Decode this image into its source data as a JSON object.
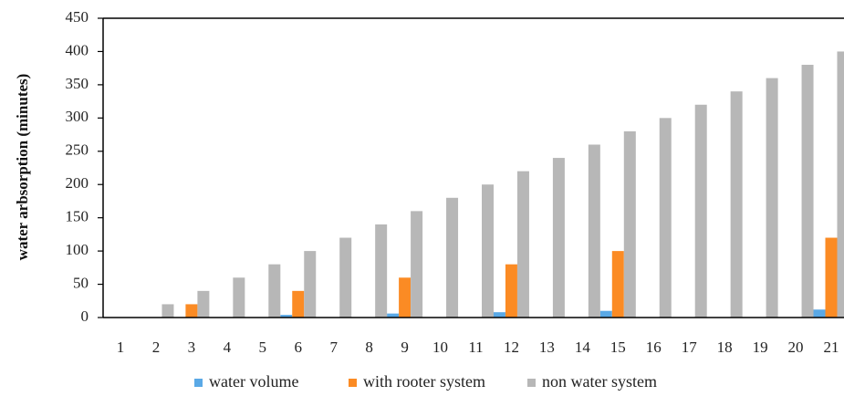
{
  "chart_data": {
    "type": "bar",
    "title": "",
    "xlabel": "",
    "ylabel": "water arbsorption (minutes)",
    "ylim": [
      0,
      450
    ],
    "yticks": [
      0,
      50,
      100,
      150,
      200,
      250,
      300,
      350,
      400,
      450
    ],
    "grid": false,
    "legend": "bottom",
    "categories": [
      "1",
      "2",
      "3",
      "4",
      "5",
      "6",
      "7",
      "8",
      "9",
      "10",
      "11",
      "12",
      "13",
      "14",
      "15",
      "16",
      "17",
      "18",
      "19",
      "20",
      "21"
    ],
    "series": [
      {
        "name": "water volume",
        "color": "#5aa9e6",
        "values": [
          0,
          0,
          0,
          0,
          0,
          4,
          0,
          0,
          6,
          0,
          0,
          8,
          0,
          0,
          10,
          0,
          0,
          0,
          0,
          0,
          12
        ]
      },
      {
        "name": "with rooter system",
        "color": "#fb8b24",
        "values": [
          0,
          0,
          20,
          0,
          0,
          40,
          0,
          0,
          60,
          0,
          0,
          80,
          0,
          0,
          100,
          0,
          0,
          0,
          0,
          0,
          120
        ]
      },
      {
        "name": "non water system",
        "color": "#b7b7b7",
        "values": [
          0,
          20,
          40,
          60,
          80,
          100,
          120,
          140,
          160,
          180,
          200,
          220,
          240,
          260,
          280,
          300,
          320,
          340,
          360,
          380,
          400
        ]
      }
    ]
  }
}
